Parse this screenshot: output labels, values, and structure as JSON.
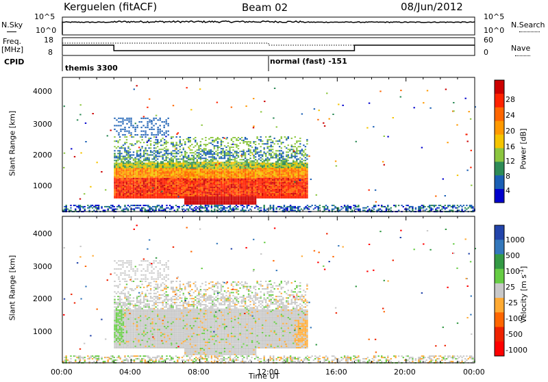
{
  "header": {
    "title": "Kerguelen (fitACF)",
    "beam": "Beam 02",
    "date": "08/Jun/2012"
  },
  "top_panels": {
    "nsky_label": "N.Sky",
    "nsky_ticks": [
      "10^5",
      "10^0"
    ],
    "nsearch_label": "N.Search",
    "nsearch_ticks": [
      "10^5",
      "10^0"
    ],
    "freq_label_line1": "Freq.",
    "freq_label_line2": "[MHz]",
    "freq_ticks": [
      "18",
      "8"
    ],
    "nave_label": "Nave",
    "nave_ticks": [
      "60",
      "0"
    ],
    "cpid_label": "CPID",
    "cpid_segments": [
      {
        "start_hour": 0,
        "text": "themis 3300"
      },
      {
        "start_hour": 12,
        "text": "normal (fast) -151"
      }
    ]
  },
  "axes": {
    "xlabel": "Time UT",
    "xticks": [
      "00:00",
      "04:00",
      "08:00",
      "12:00",
      "16:00",
      "20:00",
      "00:00"
    ],
    "ylabel_power": "Slant Range [km]",
    "ylabel_velocity": "Slant Range [km]",
    "yticks": [
      "4000",
      "3000",
      "2000",
      "1000"
    ]
  },
  "power_colorbar": {
    "label": "Power [dB]",
    "tick_labels": [
      "28",
      "24",
      "20",
      "16",
      "12",
      "8",
      "4"
    ],
    "colors": [
      "#cc0000",
      "#ff2200",
      "#ff6600",
      "#ff9900",
      "#f5c400",
      "#8cc63f",
      "#2e8b57",
      "#1a5fb4",
      "#0000cc"
    ]
  },
  "velocity_colorbar": {
    "label": "Velocity [m s",
    "label_sup": "-1",
    "label_end": "]",
    "tick_labels": [
      "1000",
      "500",
      "100",
      "25",
      "-25",
      "-100",
      "-500",
      "-1000"
    ],
    "colors": [
      "#2244aa",
      "#3377bb",
      "#339944",
      "#66cc44",
      "#c8c8c8",
      "#ffaa33",
      "#ff6600",
      "#ee2200",
      "#ff0000"
    ]
  },
  "chart_data": {
    "type": "heatmap",
    "x_range_hours": [
      0,
      24
    ],
    "y_range_km": [
      180,
      4550
    ],
    "series": [
      {
        "name": "Power",
        "summary_regions": [
          {
            "t_start": 3.0,
            "t_end": 14.2,
            "range_km": [
              600,
              1700
            ],
            "level_db": "20-28"
          },
          {
            "t_start": 7.0,
            "t_end": 11.0,
            "range_km": [
              450,
              700
            ],
            "level_db": "28"
          },
          {
            "t_start": 3.0,
            "t_end": 14.0,
            "range_km": [
              1700,
              2600
            ],
            "level_db": "4-16"
          },
          {
            "t_start": 3.0,
            "t_end": 6.0,
            "range_km": [
              2700,
              3300
            ],
            "level_db": "4-8"
          }
        ]
      },
      {
        "name": "Velocity",
        "summary_regions": [
          {
            "t_start": 3.0,
            "t_end": 14.2,
            "range_km": [
              600,
              2600
            ],
            "level_ms": "-25 to 25"
          },
          {
            "t_start": 3.0,
            "t_end": 3.5,
            "range_km": [
              900,
              2600
            ],
            "level_ms": "25 to 100"
          },
          {
            "t_start": 13.5,
            "t_end": 14.2,
            "range_km": [
              900,
              1400
            ],
            "level_ms": "-25 to -100"
          }
        ]
      }
    ]
  }
}
